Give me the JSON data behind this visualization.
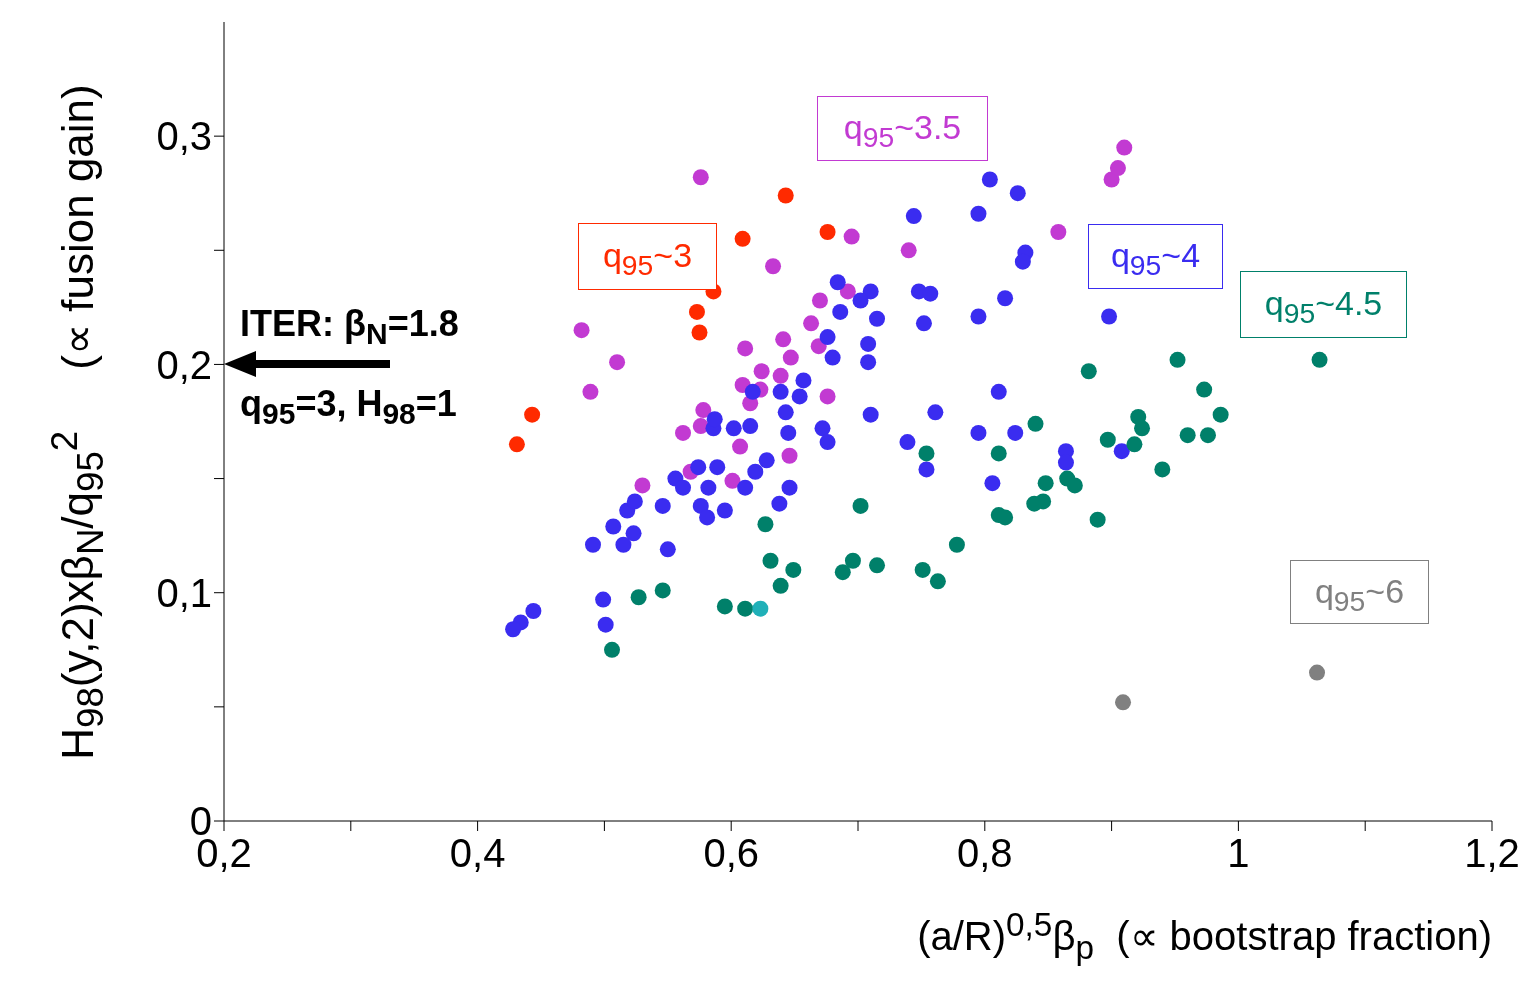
{
  "chart_data": {
    "type": "scatter",
    "xlabel": "(a/R)$^{0,5}$β$_{p}$  (∝ bootstrap fraction)",
    "ylabel": "H$_{98}$(y,2)xβ$_{N}$/q$_{95}$$^{2}$     (∝ fusion gain)",
    "xlim": [
      0.2,
      1.2
    ],
    "ylim": [
      0,
      0.35
    ],
    "xticks": [
      {
        "value": 0.2,
        "label": "0,2"
      },
      {
        "value": 0.3,
        "label": null
      },
      {
        "value": 0.4,
        "label": "0,4"
      },
      {
        "value": 0.5,
        "label": null
      },
      {
        "value": 0.6,
        "label": "0,6"
      },
      {
        "value": 0.7,
        "label": null
      },
      {
        "value": 0.8,
        "label": "0,8"
      },
      {
        "value": 0.9,
        "label": null
      },
      1,
      {
        "value": 1.1,
        "label": null
      },
      {
        "value": 1.2,
        "label": "1,2"
      }
    ],
    "yticks": [
      0,
      {
        "value": 0.05,
        "label": null
      },
      {
        "value": 0.1,
        "label": "0,1"
      },
      {
        "value": 0.15,
        "label": null
      },
      {
        "value": 0.2,
        "label": "0,2"
      },
      {
        "value": 0.25,
        "label": null
      },
      {
        "value": 0.3,
        "label": "0,3"
      }
    ],
    "grid": false,
    "marker": "circle",
    "annotations": [
      "ITER: β$_{N}$=1.8",
      "q$_{95}$=3, H$_{98}$=1"
    ],
    "series": [
      {
        "name": "q$_{95}$~3",
        "color": "#ff2a00",
        "x": [
          0.431,
          0.443,
          0.573,
          0.575,
          0.586,
          0.609,
          0.643,
          0.676
        ],
        "values": [
          0.165,
          0.178,
          0.223,
          0.214,
          0.232,
          0.255,
          0.274,
          0.258
        ]
      },
      {
        "name": "q$_{95}$~3.5",
        "color": "#c23ad2",
        "x": [
          0.576,
          0.482,
          0.489,
          0.51,
          0.695,
          0.633,
          0.74,
          0.858,
          0.9,
          0.905,
          0.91,
          0.67,
          0.692,
          0.663,
          0.641,
          0.669,
          0.647,
          0.624,
          0.611,
          0.639,
          0.676,
          0.615,
          0.578,
          0.562,
          0.576,
          0.607,
          0.568,
          0.601,
          0.53,
          0.646,
          0.609,
          0.623
        ],
        "values": [
          0.282,
          0.215,
          0.188,
          0.201,
          0.256,
          0.243,
          0.25,
          0.258,
          0.281,
          0.286,
          0.295,
          0.228,
          0.232,
          0.218,
          0.211,
          0.208,
          0.203,
          0.197,
          0.207,
          0.195,
          0.186,
          0.183,
          0.18,
          0.17,
          0.173,
          0.164,
          0.153,
          0.149,
          0.147,
          0.16,
          0.191,
          0.189
        ]
      },
      {
        "name": "q$_{95}$~4",
        "color": "#3a2cf0",
        "x": [
          0.804,
          0.826,
          0.744,
          0.795,
          0.832,
          0.83,
          0.684,
          0.71,
          0.702,
          0.748,
          0.757,
          0.686,
          0.715,
          0.752,
          0.795,
          0.816,
          0.676,
          0.708,
          0.708,
          0.68,
          0.657,
          0.617,
          0.639,
          0.654,
          0.811,
          0.71,
          0.761,
          0.643,
          0.615,
          0.645,
          0.672,
          0.676,
          0.739,
          0.795,
          0.824,
          0.754,
          0.806,
          0.628,
          0.619,
          0.611,
          0.646,
          0.638,
          0.586,
          0.602,
          0.587,
          0.574,
          0.589,
          0.556,
          0.562,
          0.582,
          0.546,
          0.518,
          0.524,
          0.576,
          0.581,
          0.595,
          0.507,
          0.523,
          0.515,
          0.491,
          0.55,
          0.499,
          0.501,
          0.444,
          0.434,
          0.428,
          0.898,
          0.864,
          0.864,
          0.908
        ],
        "values": [
          0.281,
          0.275,
          0.265,
          0.266,
          0.249,
          0.245,
          0.236,
          0.232,
          0.228,
          0.232,
          0.231,
          0.223,
          0.22,
          0.218,
          0.221,
          0.229,
          0.212,
          0.209,
          0.201,
          0.203,
          0.193,
          0.188,
          0.188,
          0.186,
          0.188,
          0.178,
          0.179,
          0.179,
          0.173,
          0.17,
          0.172,
          0.166,
          0.166,
          0.17,
          0.17,
          0.154,
          0.148,
          0.158,
          0.153,
          0.146,
          0.146,
          0.139,
          0.172,
          0.172,
          0.176,
          0.155,
          0.155,
          0.15,
          0.146,
          0.146,
          0.138,
          0.136,
          0.14,
          0.138,
          0.133,
          0.136,
          0.129,
          0.126,
          0.121,
          0.121,
          0.119,
          0.097,
          0.086,
          0.092,
          0.087,
          0.084,
          0.221,
          0.162,
          0.157,
          0.162
        ]
      },
      {
        "name": "q$_{95}$~4.5",
        "color": "#00806a",
        "x": [
          0.84,
          0.754,
          0.811,
          0.702,
          0.811,
          0.816,
          0.627,
          0.778,
          0.631,
          0.649,
          0.639,
          0.688,
          0.696,
          0.715,
          0.751,
          0.763,
          0.611,
          0.527,
          0.546,
          0.595,
          0.506,
          0.952,
          1.064,
          0.882,
          0.973,
          0.921,
          0.924,
          0.986,
          0.96,
          0.976,
          0.897,
          0.918,
          0.94,
          0.848,
          0.865,
          0.871,
          0.839,
          0.846,
          0.889
        ],
        "values": [
          0.174,
          0.161,
          0.161,
          0.138,
          0.134,
          0.133,
          0.13,
          0.121,
          0.114,
          0.11,
          0.103,
          0.109,
          0.114,
          0.112,
          0.11,
          0.105,
          0.093,
          0.098,
          0.101,
          0.094,
          0.075,
          0.202,
          0.202,
          0.197,
          0.189,
          0.177,
          0.172,
          0.178,
          0.169,
          0.169,
          0.167,
          0.165,
          0.154,
          0.148,
          0.15,
          0.147,
          0.139,
          0.14,
          0.132
        ]
      },
      {
        "color": "#20b0b8",
        "x": [
          0.623
        ],
        "values": [
          0.093
        ]
      },
      {
        "name": "q$_{95}$~6",
        "color": "#808080",
        "x": [
          1.062,
          0.909
        ],
        "values": [
          0.065,
          0.052
        ]
      }
    ]
  }
}
